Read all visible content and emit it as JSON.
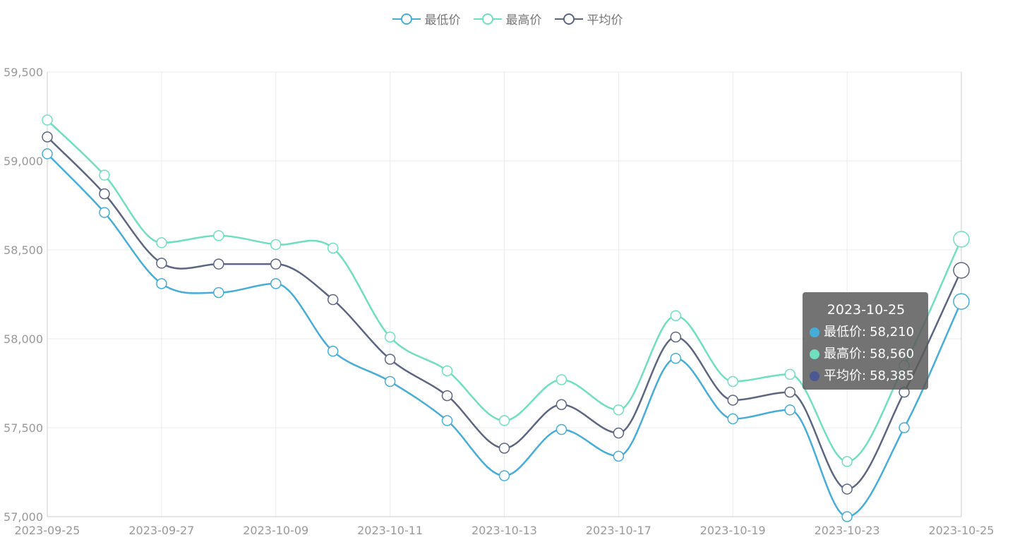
{
  "colors": {
    "low": "#46add8",
    "high": "#6fdfbf",
    "avg": "#5c6682",
    "grid": "#ebebeb",
    "axis_text": "#999999",
    "axis_line": "#cccccc",
    "tooltip_avg_dot": "#4a5894"
  },
  "chart_data": {
    "type": "line",
    "smooth": true,
    "title": "",
    "xlabel": "",
    "ylabel": "",
    "ylim": [
      57000,
      59500
    ],
    "y_ticks": [
      "59,500",
      "59,000",
      "58,500",
      "58,000",
      "57,500",
      "57,000"
    ],
    "x_tick_labels": [
      "2023-09-25",
      "2023-09-27",
      "2023-10-09",
      "2023-10-11",
      "2023-10-13",
      "2023-10-17",
      "2023-10-19",
      "2023-10-23",
      "2023-10-25"
    ],
    "grid": true,
    "legend_position": "top-center",
    "series": [
      {
        "name": "最低价",
        "key": "low",
        "values": [
          59040,
          58710,
          58310,
          58260,
          58310,
          57930,
          57760,
          57540,
          57230,
          57490,
          57340,
          57890,
          57550,
          57600,
          57000,
          57500,
          58210
        ]
      },
      {
        "name": "最高价",
        "key": "high",
        "values": [
          59230,
          58920,
          58540,
          58580,
          58530,
          58510,
          58010,
          57820,
          57540,
          57770,
          57600,
          58130,
          57760,
          57800,
          57310,
          57850,
          58560
        ]
      },
      {
        "name": "平均价",
        "key": "avg",
        "values": [
          59135,
          58815,
          58425,
          58420,
          58420,
          58220,
          57885,
          57680,
          57385,
          57630,
          57470,
          58010,
          57655,
          57700,
          57155,
          57700,
          58385
        ]
      }
    ]
  },
  "tooltip": {
    "title": "2023-10-25",
    "rows": [
      {
        "label": "最低价",
        "value": "58,210"
      },
      {
        "label": "最高价",
        "value": "58,560"
      },
      {
        "label": "平均价",
        "value": "58,385"
      }
    ]
  }
}
